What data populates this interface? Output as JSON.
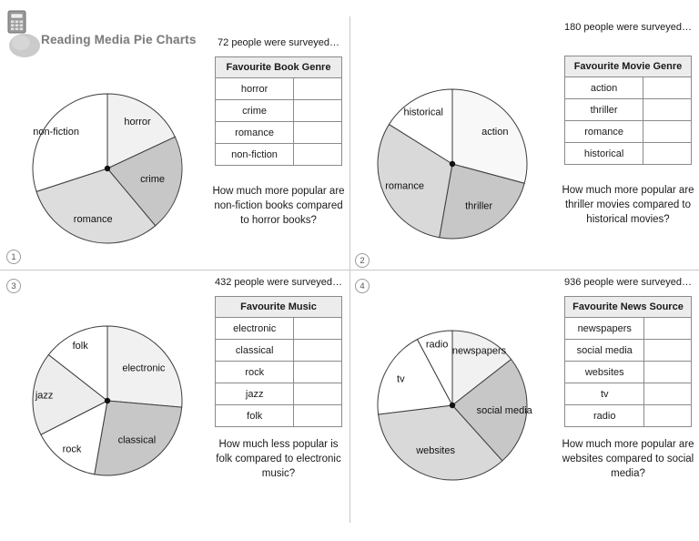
{
  "header": {
    "title": "Reading Media Pie Charts",
    "icons": [
      "calculator-icon",
      "ellipse-logo-shape"
    ]
  },
  "sections": [
    {
      "number": "1",
      "survey_text": "72 people were surveyed…",
      "table": {
        "header": "Favourite Book Genre",
        "rows": [
          "horror",
          "crime",
          "romance",
          "non-fiction"
        ]
      },
      "question": "How much more popular are non-fiction books compared to horror books?"
    },
    {
      "number": "2",
      "survey_text": "180 people were surveyed…",
      "table": {
        "header": "Favourite Movie Genre",
        "rows": [
          "action",
          "thriller",
          "romance",
          "historical"
        ]
      },
      "question": "How much more popular are thriller movies compared to historical movies?"
    },
    {
      "number": "3",
      "survey_text": "432 people were surveyed…",
      "table": {
        "header": "Favourite Music",
        "rows": [
          "electronic",
          "classical",
          "rock",
          "jazz",
          "folk"
        ]
      },
      "question": "How much less popular is folk compared to electronic music?"
    },
    {
      "number": "4",
      "survey_text": "936 people were surveyed…",
      "table": {
        "header": "Favourite News Source",
        "rows": [
          "newspapers",
          "social media",
          "websites",
          "tv",
          "radio"
        ]
      },
      "question": "How much more popular are websites compared to social media?"
    }
  ],
  "chart_data": [
    {
      "type": "pie",
      "title": "Favourite Book Genre",
      "outline_color": "#3c3c3c",
      "segments": [
        {
          "label": "horror",
          "start_deg": 0,
          "end_deg": 65,
          "color": "#f1f1f1",
          "label_r": 0.75
        },
        {
          "label": "crime",
          "start_deg": 65,
          "end_deg": 140,
          "color": "#c7c7c7",
          "label_r": 0.62
        },
        {
          "label": "romance",
          "start_deg": 140,
          "end_deg": 252,
          "color": "#dddddd",
          "label_r": 0.7
        },
        {
          "label": "non-fiction",
          "start_deg": 252,
          "end_deg": 360,
          "color": "#ffffff",
          "label_r": 0.85
        }
      ]
    },
    {
      "type": "pie",
      "title": "Favourite Movie Genre",
      "outline_color": "#3c3c3c",
      "segments": [
        {
          "label": "action",
          "start_deg": 0,
          "end_deg": 105,
          "color": "#f8f8f8",
          "label_r": 0.72
        },
        {
          "label": "thriller",
          "start_deg": 105,
          "end_deg": 190,
          "color": "#c7c7c7",
          "label_r": 0.66
        },
        {
          "label": "romance",
          "start_deg": 190,
          "end_deg": 302,
          "color": "#d9d9d9",
          "label_r": 0.7
        },
        {
          "label": "historical",
          "start_deg": 302,
          "end_deg": 360,
          "color": "#ffffff",
          "label_r": 0.8
        }
      ]
    },
    {
      "type": "pie",
      "title": "Favourite Music",
      "outline_color": "#3c3c3c",
      "segments": [
        {
          "label": "electronic",
          "start_deg": 0,
          "end_deg": 95,
          "color": "#f1f1f1",
          "label_r": 0.66
        },
        {
          "label": "classical",
          "start_deg": 95,
          "end_deg": 190,
          "color": "#c7c7c7",
          "label_r": 0.65
        },
        {
          "label": "rock",
          "start_deg": 190,
          "end_deg": 243,
          "color": "#ffffff",
          "label_r": 0.8
        },
        {
          "label": "jazz",
          "start_deg": 243,
          "end_deg": 308,
          "color": "#ededed",
          "label_r": 0.85
        },
        {
          "label": "folk",
          "start_deg": 308,
          "end_deg": 360,
          "color": "#ffffff",
          "label_r": 0.83
        }
      ]
    },
    {
      "type": "pie",
      "title": "Favourite News Source",
      "outline_color": "#3c3c3c",
      "segments": [
        {
          "label": "newspapers",
          "start_deg": 0,
          "end_deg": 52,
          "color": "#f1f1f1",
          "label_r": 0.82
        },
        {
          "label": "social media",
          "start_deg": 52,
          "end_deg": 138,
          "color": "#c7c7c7",
          "label_r": 0.7
        },
        {
          "label": "websites",
          "start_deg": 138,
          "end_deg": 263,
          "color": "#d9d9d9",
          "label_r": 0.64
        },
        {
          "label": "tv",
          "start_deg": 263,
          "end_deg": 332,
          "color": "#ffffff",
          "label_r": 0.78
        },
        {
          "label": "radio",
          "start_deg": 332,
          "end_deg": 360,
          "color": "#ffffff",
          "label_r": 0.85
        }
      ]
    }
  ]
}
